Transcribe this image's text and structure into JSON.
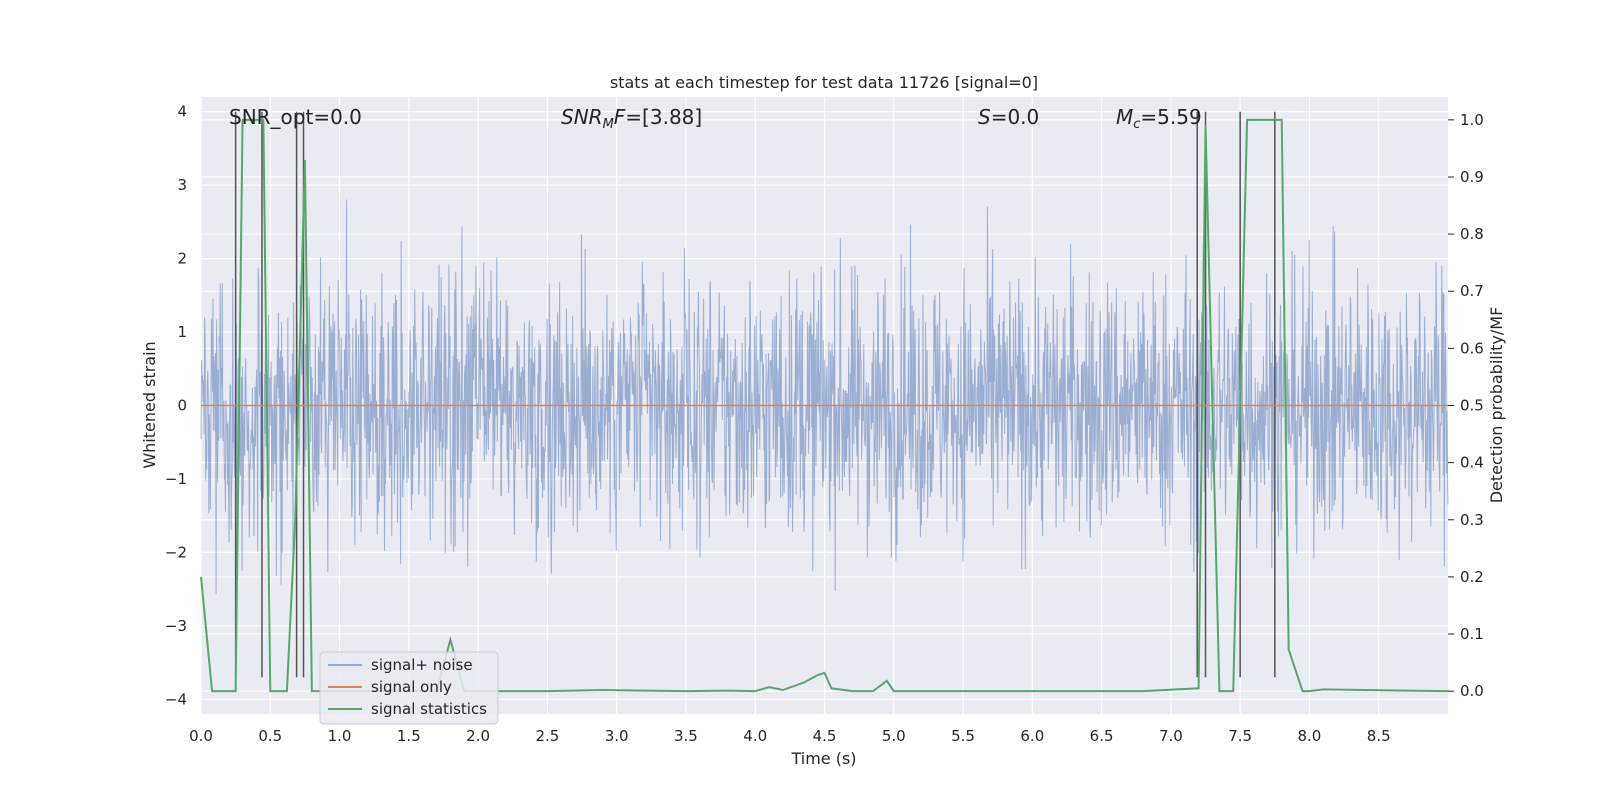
{
  "chart_data": {
    "type": "line",
    "title": "stats at each timestep for test data 11726 [signal=0]",
    "xlabel": "Time (s)",
    "ylabel": "Whitened strain",
    "ylabel_right": "Detection probability/MF",
    "xlim": [
      0.0,
      9.0
    ],
    "ylim": [
      -4.2,
      4.2
    ],
    "ylim_right": [
      -0.04,
      1.04
    ],
    "xticks": [
      "0.0",
      "0.5",
      "1.0",
      "1.5",
      "2.0",
      "2.5",
      "3.0",
      "3.5",
      "4.0",
      "4.5",
      "5.0",
      "5.5",
      "6.0",
      "6.5",
      "7.0",
      "7.5",
      "8.0",
      "8.5"
    ],
    "xtick_values": [
      0.0,
      0.5,
      1.0,
      1.5,
      2.0,
      2.5,
      3.0,
      3.5,
      4.0,
      4.5,
      5.0,
      5.5,
      6.0,
      6.5,
      7.0,
      7.5,
      8.0,
      8.5
    ],
    "yticks": [
      "4",
      "3",
      "2",
      "1",
      "0",
      "−1",
      "−2",
      "−3",
      "−4"
    ],
    "ytick_values": [
      4,
      3,
      2,
      1,
      0,
      -1,
      -2,
      -3,
      -4
    ],
    "yticks_right": [
      "1.0",
      "0.9",
      "0.8",
      "0.7",
      "0.6",
      "0.5",
      "0.4",
      "0.3",
      "0.2",
      "0.1",
      "0.0"
    ],
    "ytick_values_right": [
      1.0,
      0.9,
      0.8,
      0.7,
      0.6,
      0.5,
      0.4,
      0.3,
      0.2,
      0.1,
      0.0
    ],
    "grid": true,
    "legend_position": "lower-left",
    "annotations": [
      {
        "text": "SNR_opt=0.0",
        "x": 0.2
      },
      {
        "text": "SNR_MF=[3.88]",
        "x": 2.6
      },
      {
        "text": "S=0.0",
        "x": 5.6
      },
      {
        "text": "M_c=5.59",
        "x": 6.6
      }
    ],
    "series": [
      {
        "name": "signal+ noise",
        "color": "#4c72b0",
        "kind": "noise",
        "typical_range": [
          -1.4,
          2.0
        ],
        "peak_max": 4.0,
        "peak_min": -3.9
      },
      {
        "name": "signal only",
        "color": "#dd8452",
        "kind": "line",
        "x": [
          0.0,
          9.0
        ],
        "y": [
          0.0,
          0.0
        ]
      },
      {
        "name": "signal statistics",
        "color": "#55a868",
        "kind": "line",
        "axis": "right",
        "x": [
          0.0,
          0.08,
          0.25,
          0.3,
          0.35,
          0.42,
          0.45,
          0.5,
          0.62,
          0.68,
          0.75,
          0.8,
          0.95,
          1.7,
          1.8,
          1.9,
          2.5,
          2.9,
          3.5,
          3.8,
          4.0,
          4.1,
          4.2,
          4.35,
          4.45,
          4.5,
          4.55,
          4.7,
          4.85,
          4.95,
          5.0,
          6.8,
          7.2,
          7.25,
          7.35,
          7.45,
          7.55,
          7.8,
          7.85,
          7.95,
          8.0,
          8.1,
          9.0
        ],
        "y": [
          0.2,
          0.0,
          0.0,
          1.0,
          1.0,
          1.0,
          1.0,
          0.0,
          0.0,
          0.3,
          0.93,
          0.0,
          0.0,
          0.0,
          0.09,
          0.0,
          0.0,
          0.002,
          0.0,
          0.001,
          0.0,
          0.007,
          0.002,
          0.015,
          0.028,
          0.032,
          0.005,
          0.0,
          0.0,
          0.018,
          0.0,
          0.0,
          0.005,
          0.99,
          0.0,
          0.0,
          1.0,
          1.0,
          0.073,
          0.0,
          0.0,
          0.003,
          0.0
        ]
      },
      {
        "name": "markers",
        "color": "#555555",
        "kind": "vlines",
        "x": [
          0.25,
          0.44,
          0.69,
          0.74,
          7.19,
          7.25,
          7.5,
          7.75
        ]
      }
    ]
  }
}
